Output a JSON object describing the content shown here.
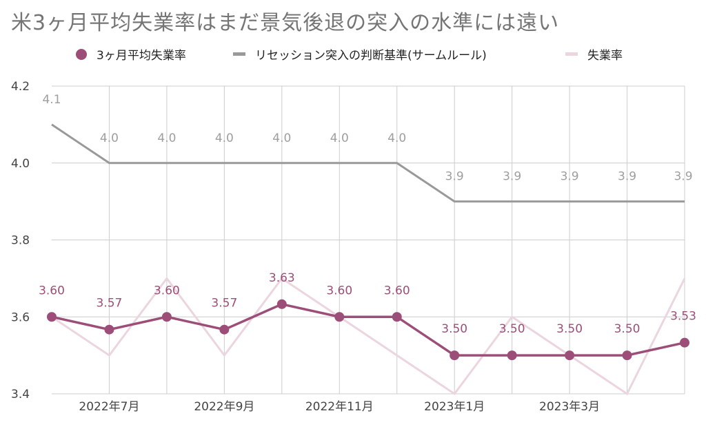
{
  "title": "米3ヶ月平均失業率はまだ景気後退の突入の水準には遠い",
  "colors": {
    "avg": "#9c4e78",
    "sahm": "#999999",
    "unemp": "#ebd5df",
    "grid": "#cccccc",
    "axis_label": "#444444"
  },
  "legend": [
    {
      "label": "3ヶ月平均失業率",
      "marker": "dot",
      "color": "#9c4e78"
    },
    {
      "label": "リセッション突入の判断基準(サームルール)",
      "marker": "line",
      "color": "#999999"
    },
    {
      "label": "失業率",
      "marker": "line",
      "color": "#ebd5df"
    }
  ],
  "chart_data": {
    "type": "line",
    "title": "米3ヶ月平均失業率はまだ景気後退の突入の水準には遠い",
    "xlabel": "",
    "ylabel": "",
    "ylim": [
      3.4,
      4.2
    ],
    "yticks": [
      "3.4",
      "3.6",
      "3.8",
      "4.0",
      "4.2"
    ],
    "x": [
      "2022-06",
      "2022-07",
      "2022-08",
      "2022-09",
      "2022-10",
      "2022-11",
      "2022-12",
      "2023-01",
      "2023-02",
      "2023-03",
      "2023-04",
      "2023-05"
    ],
    "xtick_labels": [
      {
        "index": 1,
        "label": "2022年7月"
      },
      {
        "index": 3,
        "label": "2022年9月"
      },
      {
        "index": 5,
        "label": "2022年11月"
      },
      {
        "index": 7,
        "label": "2023年1月"
      },
      {
        "index": 9,
        "label": "2023年3月"
      }
    ],
    "legend_position": "top",
    "grid": true,
    "series": [
      {
        "name": "3ヶ月平均失業率",
        "values": [
          3.6,
          3.567,
          3.6,
          3.567,
          3.633,
          3.6,
          3.6,
          3.5,
          3.5,
          3.5,
          3.5,
          3.533
        ],
        "labels": [
          "3.60",
          "3.57",
          "3.60",
          "3.57",
          "3.63",
          "3.60",
          "3.60",
          "3.50",
          "3.50",
          "3.50",
          "3.50",
          "3.53"
        ]
      },
      {
        "name": "リセッション突入の判断基準(サームルール)",
        "values": [
          4.1,
          4.0,
          4.0,
          4.0,
          4.0,
          4.0,
          4.0,
          3.9,
          3.9,
          3.9,
          3.9,
          3.9
        ],
        "labels": [
          "4.1",
          "4.0",
          "4.0",
          "4.0",
          "4.0",
          "4.0",
          "4.0",
          "3.9",
          "3.9",
          "3.9",
          "3.9",
          "3.9"
        ]
      },
      {
        "name": "失業率",
        "values": [
          3.6,
          3.5,
          3.7,
          3.5,
          3.7,
          3.6,
          3.5,
          3.4,
          3.6,
          3.5,
          3.4,
          3.7
        ]
      }
    ]
  }
}
